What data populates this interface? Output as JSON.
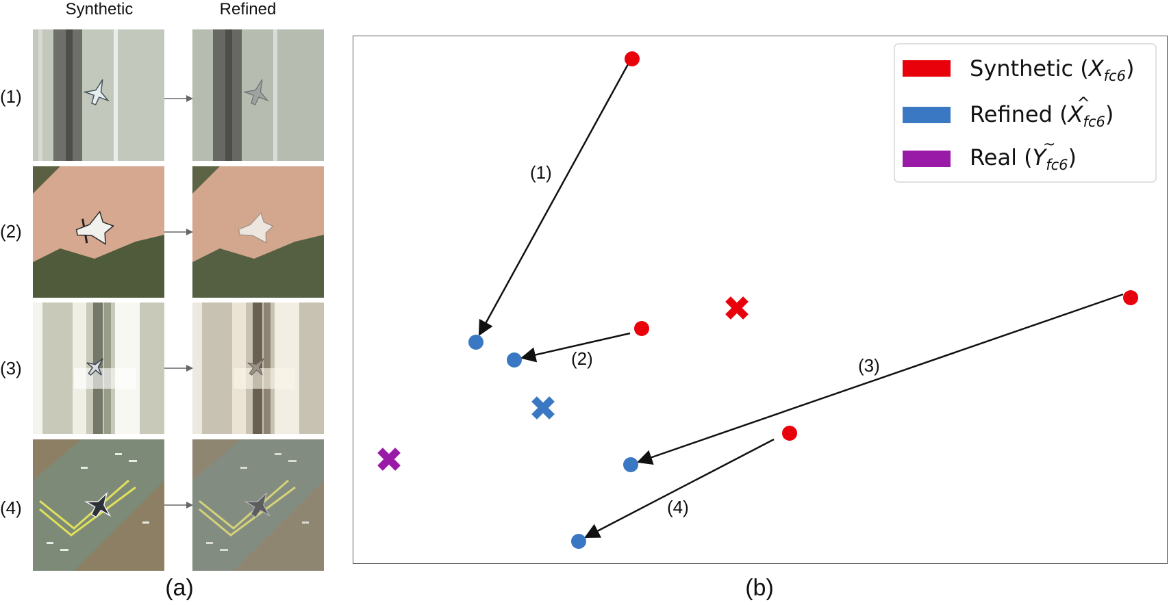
{
  "panel_a": {
    "header_synthetic": "Synthetic",
    "header_refined": "Refined",
    "rows": [
      {
        "label": "(1)",
        "scene": "runway-light"
      },
      {
        "label": "(2)",
        "scene": "desert-trees"
      },
      {
        "label": "(3)",
        "scene": "runway-bright"
      },
      {
        "label": "(4)",
        "scene": "taxiway-yellow"
      }
    ],
    "caption": "(a)"
  },
  "panel_b": {
    "caption": "(b)",
    "legend": [
      {
        "text": "Synthetic (",
        "symbol": "X",
        "sub": "fc6",
        "accent": "",
        "tail": ")",
        "color": "#e8000b"
      },
      {
        "text": "Refined (",
        "symbol": "X",
        "sub": "fc6",
        "accent": "^",
        "tail": ")",
        "color": "#3a78c3"
      },
      {
        "text": "Real (",
        "symbol": "Y",
        "sub": "fc6",
        "accent": "~",
        "tail": ")",
        "color": "#9a1aa8"
      }
    ],
    "arrow_labels": [
      "(1)",
      "(2)",
      "(3)",
      "(4)"
    ],
    "colors": {
      "synthetic": "#e8000b",
      "refined": "#3a78c3",
      "real": "#9a1aa8",
      "arrow": "#111111"
    }
  }
}
